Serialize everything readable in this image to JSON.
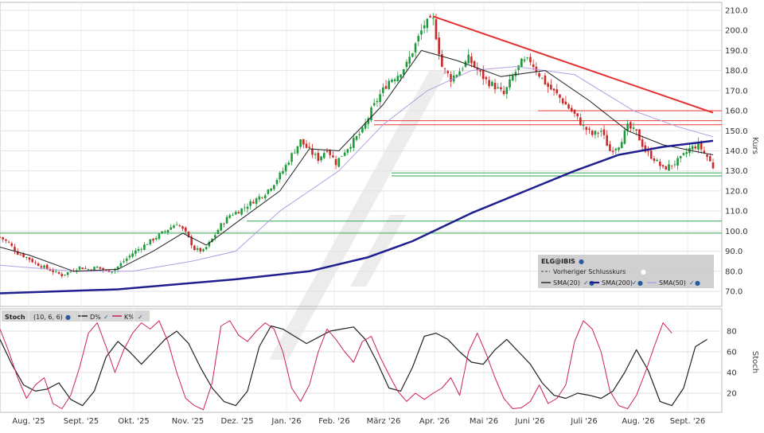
{
  "chart_data": [
    {
      "type": "candlestick",
      "instrument": "ELG@IBIS",
      "ylabel": "Kurs",
      "ylim": [
        63,
        213
      ],
      "y_ticks": [
        "210.0",
        "200.0",
        "190.0",
        "180.0",
        "170.0",
        "160.0",
        "150.0",
        "140.0",
        "130.0",
        "120.0",
        "110.0",
        "100.0",
        "90.0",
        "80.0",
        "70.0"
      ],
      "x_ticks": [
        "Aug. '25",
        "Sept. '25",
        "Okt. '25",
        "Nov. '25",
        "Dez. '25",
        "Jan. '26",
        "Feb. '26",
        "März '26",
        "Apr. '26",
        "Mai '26",
        "Juni '26",
        "Juli '26",
        "Aug. '26",
        "Sept. '26"
      ],
      "legend": {
        "title": "ELG@IBIS",
        "prev_close_label": "Vorheriger Schlusskurs",
        "items": [
          {
            "label": "SMA(20)",
            "color": "#222222"
          },
          {
            "label": "SMA(200)",
            "color": "#1f1f8f"
          },
          {
            "label": "SMA(50)",
            "color": "#b59ee0"
          }
        ]
      },
      "close_path": [
        [
          0,
          97
        ],
        [
          3,
          94
        ],
        [
          6,
          89
        ],
        [
          9,
          87
        ],
        [
          12,
          84
        ],
        [
          15,
          82
        ],
        [
          18,
          80
        ],
        [
          21,
          78
        ],
        [
          24,
          80
        ],
        [
          27,
          82
        ],
        [
          30,
          81
        ],
        [
          33,
          82
        ],
        [
          36,
          80
        ],
        [
          39,
          81
        ],
        [
          42,
          85
        ],
        [
          45,
          89
        ],
        [
          48,
          92
        ],
        [
          51,
          95
        ],
        [
          54,
          98
        ],
        [
          57,
          101
        ],
        [
          60,
          104
        ],
        [
          63,
          99
        ],
        [
          66,
          91
        ],
        [
          69,
          90
        ],
        [
          72,
          96
        ],
        [
          75,
          103
        ],
        [
          78,
          108
        ],
        [
          81,
          110
        ],
        [
          84,
          113
        ],
        [
          87,
          116
        ],
        [
          90,
          119
        ],
        [
          93,
          124
        ],
        [
          96,
          130
        ],
        [
          99,
          138
        ],
        [
          102,
          145
        ],
        [
          105,
          140
        ],
        [
          108,
          136
        ],
        [
          111,
          141
        ],
        [
          114,
          134
        ],
        [
          117,
          140
        ],
        [
          120,
          145
        ],
        [
          123,
          150
        ],
        [
          126,
          160
        ],
        [
          129,
          168
        ],
        [
          132,
          175
        ],
        [
          135,
          178
        ],
        [
          138,
          183
        ],
        [
          141,
          193
        ],
        [
          144,
          203
        ],
        [
          147,
          205
        ],
        [
          150,
          182
        ],
        [
          153,
          176
        ],
        [
          156,
          180
        ],
        [
          159,
          186
        ],
        [
          162,
          180
        ],
        [
          165,
          175
        ],
        [
          168,
          172
        ],
        [
          171,
          168
        ],
        [
          174,
          177
        ],
        [
          177,
          184
        ],
        [
          180,
          185
        ],
        [
          183,
          178
        ],
        [
          186,
          172
        ],
        [
          189,
          168
        ],
        [
          192,
          163
        ],
        [
          195,
          158
        ],
        [
          198,
          152
        ],
        [
          201,
          148
        ],
        [
          204,
          150
        ],
        [
          207,
          140
        ],
        [
          210,
          143
        ],
        [
          213,
          152
        ],
        [
          216,
          149
        ],
        [
          219,
          140
        ],
        [
          222,
          136
        ],
        [
          225,
          131
        ],
        [
          228,
          133
        ],
        [
          231,
          136
        ],
        [
          234,
          141
        ],
        [
          237,
          143
        ],
        [
          240,
          137
        ],
        [
          242,
          132
        ]
      ],
      "sma200": [
        [
          0,
          69
        ],
        [
          40,
          71
        ],
        [
          80,
          76
        ],
        [
          105,
          80
        ],
        [
          125,
          87
        ],
        [
          140,
          95
        ],
        [
          160,
          109
        ],
        [
          180,
          121
        ],
        [
          195,
          130
        ],
        [
          210,
          138
        ],
        [
          225,
          142
        ],
        [
          242,
          145
        ]
      ],
      "sma50": [
        [
          0,
          83
        ],
        [
          25,
          80
        ],
        [
          45,
          80
        ],
        [
          65,
          85
        ],
        [
          80,
          90
        ],
        [
          95,
          110
        ],
        [
          115,
          130
        ],
        [
          130,
          153
        ],
        [
          145,
          170
        ],
        [
          160,
          180
        ],
        [
          175,
          182
        ],
        [
          195,
          178
        ],
        [
          215,
          160
        ],
        [
          230,
          152
        ],
        [
          242,
          147
        ]
      ],
      "sma20": [
        [
          0,
          92
        ],
        [
          10,
          88
        ],
        [
          25,
          80
        ],
        [
          40,
          81
        ],
        [
          52,
          90
        ],
        [
          62,
          99
        ],
        [
          70,
          93
        ],
        [
          80,
          104
        ],
        [
          95,
          120
        ],
        [
          105,
          141
        ],
        [
          115,
          140
        ],
        [
          130,
          163
        ],
        [
          143,
          190
        ],
        [
          155,
          185
        ],
        [
          170,
          177
        ],
        [
          185,
          180
        ],
        [
          200,
          165
        ],
        [
          213,
          150
        ],
        [
          225,
          143
        ],
        [
          235,
          140
        ],
        [
          242,
          138
        ]
      ],
      "trendline": [
        [
          147,
          207
        ],
        [
          242,
          159
        ]
      ],
      "levels": [
        {
          "y": 155,
          "color": "#e53b3b"
        },
        {
          "y": 153,
          "color": "#e53b3b"
        },
        {
          "y": 160,
          "color": "#e53b3b"
        },
        {
          "y": 129,
          "color": "#32a852"
        },
        {
          "y": 127.5,
          "color": "#32a852"
        },
        {
          "y": 105,
          "color": "#32a852"
        },
        {
          "y": 99,
          "color": "#32a852"
        }
      ]
    },
    {
      "type": "line",
      "indicator": "Stoch",
      "params": "(10, 6, 6)",
      "ylabel": "Stoch",
      "ylim": [
        0,
        100
      ],
      "y_ticks": [
        "80",
        "60",
        "40",
        "20"
      ],
      "series": [
        {
          "name": "D%",
          "color": "#222222",
          "values": [
            [
              0,
              72
            ],
            [
              4,
              48
            ],
            [
              8,
              28
            ],
            [
              12,
              22
            ],
            [
              16,
              24
            ],
            [
              20,
              30
            ],
            [
              24,
              14
            ],
            [
              28,
              8
            ],
            [
              32,
              22
            ],
            [
              36,
              55
            ],
            [
              40,
              70
            ],
            [
              44,
              60
            ],
            [
              48,
              48
            ],
            [
              52,
              60
            ],
            [
              56,
              72
            ],
            [
              60,
              80
            ],
            [
              64,
              68
            ],
            [
              68,
              45
            ],
            [
              72,
              25
            ],
            [
              76,
              12
            ],
            [
              80,
              8
            ],
            [
              84,
              22
            ],
            [
              88,
              65
            ],
            [
              92,
              85
            ],
            [
              96,
              82
            ],
            [
              100,
              75
            ],
            [
              104,
              68
            ],
            [
              108,
              74
            ],
            [
              112,
              80
            ],
            [
              116,
              82
            ],
            [
              120,
              84
            ],
            [
              124,
              72
            ],
            [
              128,
              50
            ],
            [
              132,
              25
            ],
            [
              136,
              22
            ],
            [
              140,
              45
            ],
            [
              144,
              75
            ],
            [
              148,
              78
            ],
            [
              152,
              72
            ],
            [
              156,
              60
            ],
            [
              160,
              50
            ],
            [
              164,
              48
            ],
            [
              168,
              62
            ],
            [
              172,
              72
            ],
            [
              176,
              60
            ],
            [
              180,
              48
            ],
            [
              184,
              30
            ],
            [
              188,
              18
            ],
            [
              192,
              15
            ],
            [
              196,
              20
            ],
            [
              200,
              18
            ],
            [
              204,
              15
            ],
            [
              208,
              22
            ],
            [
              212,
              40
            ],
            [
              216,
              62
            ],
            [
              220,
              42
            ],
            [
              224,
              12
            ],
            [
              228,
              8
            ],
            [
              232,
              25
            ],
            [
              236,
              65
            ],
            [
              240,
              72
            ]
          ]
        },
        {
          "name": "K%",
          "color": "#cc2255",
          "values": [
            [
              0,
              82
            ],
            [
              3,
              60
            ],
            [
              6,
              35
            ],
            [
              9,
              15
            ],
            [
              12,
              28
            ],
            [
              15,
              35
            ],
            [
              18,
              10
            ],
            [
              21,
              5
            ],
            [
              24,
              18
            ],
            [
              27,
              45
            ],
            [
              30,
              78
            ],
            [
              33,
              88
            ],
            [
              36,
              65
            ],
            [
              39,
              40
            ],
            [
              42,
              62
            ],
            [
              45,
              78
            ],
            [
              48,
              88
            ],
            [
              51,
              82
            ],
            [
              54,
              90
            ],
            [
              57,
              70
            ],
            [
              60,
              40
            ],
            [
              63,
              15
            ],
            [
              66,
              8
            ],
            [
              69,
              4
            ],
            [
              72,
              30
            ],
            [
              75,
              85
            ],
            [
              78,
              90
            ],
            [
              81,
              76
            ],
            [
              84,
              70
            ],
            [
              87,
              80
            ],
            [
              90,
              88
            ],
            [
              93,
              82
            ],
            [
              96,
              60
            ],
            [
              99,
              25
            ],
            [
              102,
              12
            ],
            [
              105,
              28
            ],
            [
              108,
              60
            ],
            [
              111,
              82
            ],
            [
              114,
              72
            ],
            [
              117,
              60
            ],
            [
              120,
              50
            ],
            [
              123,
              70
            ],
            [
              126,
              75
            ],
            [
              129,
              55
            ],
            [
              132,
              38
            ],
            [
              135,
              22
            ],
            [
              138,
              12
            ],
            [
              141,
              20
            ],
            [
              144,
              14
            ],
            [
              147,
              20
            ],
            [
              150,
              25
            ],
            [
              153,
              35
            ],
            [
              156,
              18
            ],
            [
              159,
              60
            ],
            [
              162,
              78
            ],
            [
              165,
              58
            ],
            [
              168,
              35
            ],
            [
              171,
              15
            ],
            [
              174,
              5
            ],
            [
              177,
              6
            ],
            [
              180,
              12
            ],
            [
              183,
              28
            ],
            [
              186,
              10
            ],
            [
              189,
              15
            ],
            [
              192,
              28
            ],
            [
              195,
              70
            ],
            [
              198,
              90
            ],
            [
              201,
              82
            ],
            [
              204,
              60
            ],
            [
              207,
              22
            ],
            [
              210,
              8
            ],
            [
              213,
              5
            ],
            [
              216,
              18
            ],
            [
              219,
              40
            ],
            [
              222,
              65
            ],
            [
              225,
              88
            ],
            [
              228,
              78
            ]
          ]
        }
      ]
    }
  ]
}
